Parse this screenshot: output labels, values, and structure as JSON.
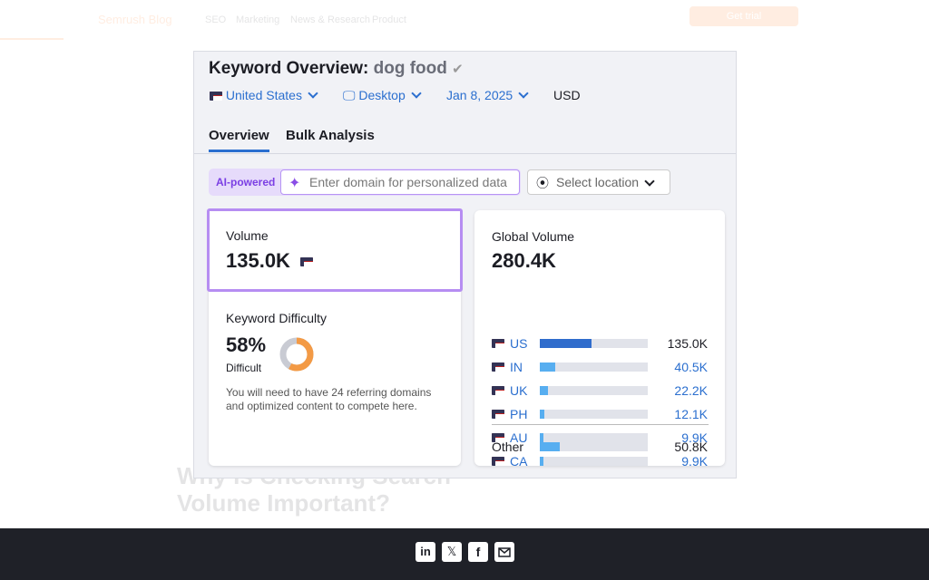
{
  "site": {
    "logo": "Semrush Blog",
    "nav": [
      "SEO",
      "Marketing",
      "News & Research",
      "Product"
    ],
    "cta": "Get trial",
    "background_heading": "Why Is Checking Search Volume Important?",
    "footer_icons": [
      "in",
      "𝕏",
      "f"
    ]
  },
  "overview": {
    "title": "Keyword Overview:",
    "keyword": "dog food",
    "filters": [
      "United States",
      "Desktop",
      "Jan 8, 2025",
      "USD"
    ],
    "tabs": [
      "Overview",
      "Bulk Analysis"
    ],
    "ai_badge": "AI-powered",
    "domain_placeholder": "Enter domain for personalized data",
    "location_placeholder": "Select location",
    "volume": {
      "label": "Volume",
      "value": "135.0K"
    },
    "difficulty": {
      "label": "Keyword Difficulty",
      "value": 58,
      "value_label": "58%",
      "level": "Difficult",
      "note": "You will need to have 24 referring domains and optimized content to compete here."
    },
    "global": {
      "label": "Global Volume",
      "value": 280400,
      "value_label": "280.4K",
      "countries": [
        {
          "code": "US",
          "value": 135000,
          "label": "135.0K"
        },
        {
          "code": "IN",
          "value": 40500,
          "label": "40.5K"
        },
        {
          "code": "UK",
          "value": 22200,
          "label": "22.2K"
        },
        {
          "code": "PH",
          "value": 12100,
          "label": "12.1K"
        },
        {
          "code": "AU",
          "value": 9900,
          "label": "9.9K"
        },
        {
          "code": "CA",
          "value": 9900,
          "label": "9.9K"
        }
      ],
      "other": {
        "name": "Other",
        "value": 50800,
        "label": "50.8K"
      }
    }
  }
}
